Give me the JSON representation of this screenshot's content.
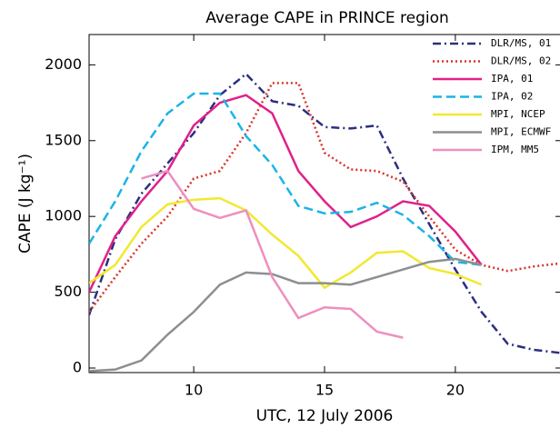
{
  "chart_data": {
    "type": "line",
    "title": "Average CAPE in PRINCE region",
    "x_label": "UTC, 12 July 2006",
    "y_label": "CAPE (J kg⁻¹)",
    "x": [
      6,
      7,
      8,
      9,
      10,
      11,
      12,
      13,
      14,
      15,
      16,
      17,
      18,
      19,
      20,
      21,
      22,
      23,
      24
    ],
    "xlim": [
      6,
      24
    ],
    "xticks": [
      10,
      15,
      20
    ],
    "ylim": [
      -30,
      2200
    ],
    "yticks": [
      0,
      500,
      1000,
      1500,
      2000
    ],
    "legend": "upper right",
    "series": [
      {
        "name": "DLR/MS, 01",
        "color": "#2b2f80",
        "style": "dashdot",
        "values": [
          350,
          850,
          1150,
          1350,
          1550,
          1800,
          1940,
          1760,
          1730,
          1590,
          1580,
          1600,
          1250,
          950,
          650,
          370,
          160,
          120,
          100
        ]
      },
      {
        "name": "DLR/MS, 02",
        "color": "#d9342b",
        "style": "dotted",
        "values": [
          370,
          600,
          820,
          1000,
          1250,
          1300,
          1550,
          1880,
          1880,
          1420,
          1310,
          1300,
          1230,
          1000,
          780,
          680,
          640,
          670,
          690
        ]
      },
      {
        "name": "IPA, 01",
        "color": "#e0218a",
        "style": "solid",
        "values": [
          500,
          870,
          1100,
          1300,
          1600,
          1750,
          1800,
          1680,
          1300,
          1100,
          930,
          1000,
          1100,
          1070,
          900,
          680,
          null,
          null,
          null
        ]
      },
      {
        "name": "IPA, 02",
        "color": "#1ab4e8",
        "style": "dashed",
        "values": [
          820,
          1100,
          1430,
          1680,
          1810,
          1810,
          1530,
          1340,
          1070,
          1020,
          1030,
          1090,
          1010,
          870,
          700,
          680,
          null,
          null,
          null
        ]
      },
      {
        "name": "MPI, NCEP",
        "color": "#f2e830",
        "style": "solid",
        "values": [
          560,
          680,
          930,
          1080,
          1110,
          1120,
          1040,
          880,
          740,
          530,
          630,
          760,
          770,
          660,
          620,
          550,
          null,
          null,
          null
        ]
      },
      {
        "name": "MPI, ECMWF",
        "color": "#8c8f91",
        "style": "solid",
        "values": [
          -20,
          -10,
          50,
          220,
          370,
          550,
          630,
          620,
          560,
          560,
          550,
          600,
          650,
          700,
          720,
          680,
          null,
          null,
          null
        ]
      },
      {
        "name": "IPM, MM5",
        "color": "#ee8fbf",
        "style": "solid",
        "values": [
          null,
          null,
          1250,
          1300,
          1050,
          990,
          1040,
          600,
          330,
          400,
          390,
          240,
          200,
          null,
          null,
          null,
          null,
          null,
          null
        ]
      }
    ]
  }
}
